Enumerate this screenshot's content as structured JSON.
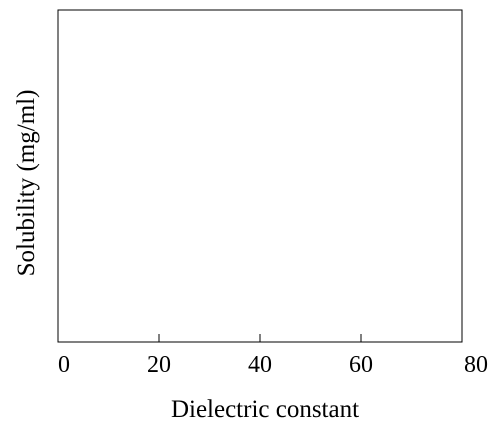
{
  "chart_data": {
    "type": "scatter",
    "title": "",
    "xlabel": "Dielectric constant",
    "ylabel": "Solubility (mg/ml)",
    "xlim": [
      0,
      80
    ],
    "x_ticks": [
      0,
      20,
      40,
      60,
      80
    ],
    "x_tick_labels": [
      "0",
      "20",
      "40",
      "60",
      "80"
    ],
    "y_ticks": [],
    "grid": false,
    "legend": "none",
    "series": []
  }
}
